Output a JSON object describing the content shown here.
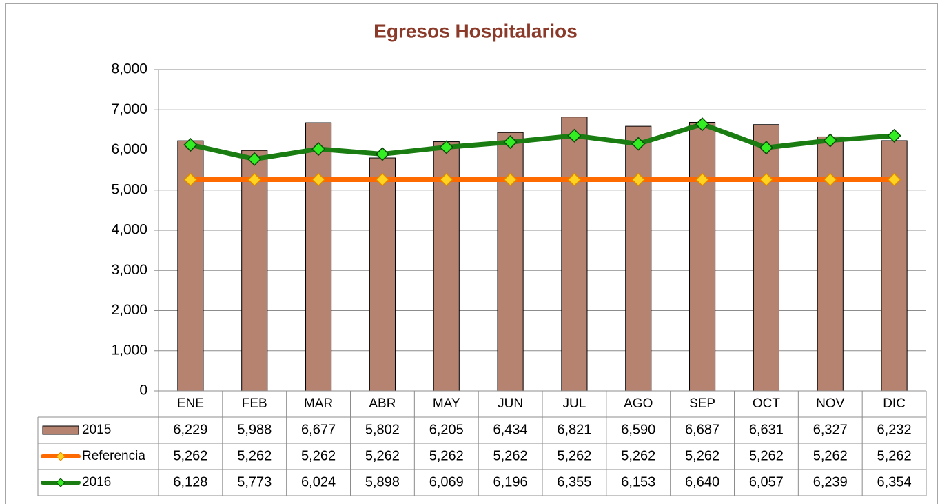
{
  "chart_data": {
    "type": "bar",
    "title": "Egresos Hospitalarios",
    "categories": [
      "ENE",
      "FEB",
      "MAR",
      "ABR",
      "MAY",
      "JUN",
      "JUL",
      "AGO",
      "SEP",
      "OCT",
      "NOV",
      "DIC"
    ],
    "series": [
      {
        "name": "2015",
        "type": "bar",
        "color": "#b5836f",
        "values": [
          6229,
          5988,
          6677,
          5802,
          6205,
          6434,
          6821,
          6590,
          6687,
          6631,
          6327,
          6232
        ],
        "value_labels": [
          "6,229",
          "5,988",
          "6,677",
          "5,802",
          "6,205",
          "6,434",
          "6,821",
          "6,590",
          "6,687",
          "6,631",
          "6,327",
          "6,232"
        ]
      },
      {
        "name": "Referencia",
        "type": "line",
        "color": "#ff6a00",
        "marker_color": "#ffd320",
        "values": [
          5262,
          5262,
          5262,
          5262,
          5262,
          5262,
          5262,
          5262,
          5262,
          5262,
          5262,
          5262
        ],
        "value_labels": [
          "5,262",
          "5,262",
          "5,262",
          "5,262",
          "5,262",
          "5,262",
          "5,262",
          "5,262",
          "5,262",
          "5,262",
          "5,262",
          "5,262"
        ]
      },
      {
        "name": "2016",
        "type": "line",
        "color": "#1a7d12",
        "marker_color": "#33ee22",
        "values": [
          6128,
          5773,
          6024,
          5898,
          6069,
          6196,
          6355,
          6153,
          6640,
          6057,
          6239,
          6354
        ],
        "value_labels": [
          "6,128",
          "5,773",
          "6,024",
          "5,898",
          "6,069",
          "6,196",
          "6,355",
          "6,153",
          "6,640",
          "6,057",
          "6,239",
          "6,354"
        ]
      }
    ],
    "ylim": [
      0,
      8000
    ],
    "yticks": [
      0,
      {
        "value": 1000,
        "label": "1,000"
      },
      {
        "value": 2000,
        "label": "2,000"
      },
      {
        "value": 3000,
        "label": "3,000"
      },
      {
        "value": 4000,
        "label": "4,000"
      },
      {
        "value": 5000,
        "label": "5,000"
      },
      {
        "value": 6000,
        "label": "6,000"
      },
      {
        "value": 7000,
        "label": "7,000"
      },
      {
        "value": 8000,
        "label": "8,000"
      }
    ],
    "grid": true,
    "data_table": true
  }
}
